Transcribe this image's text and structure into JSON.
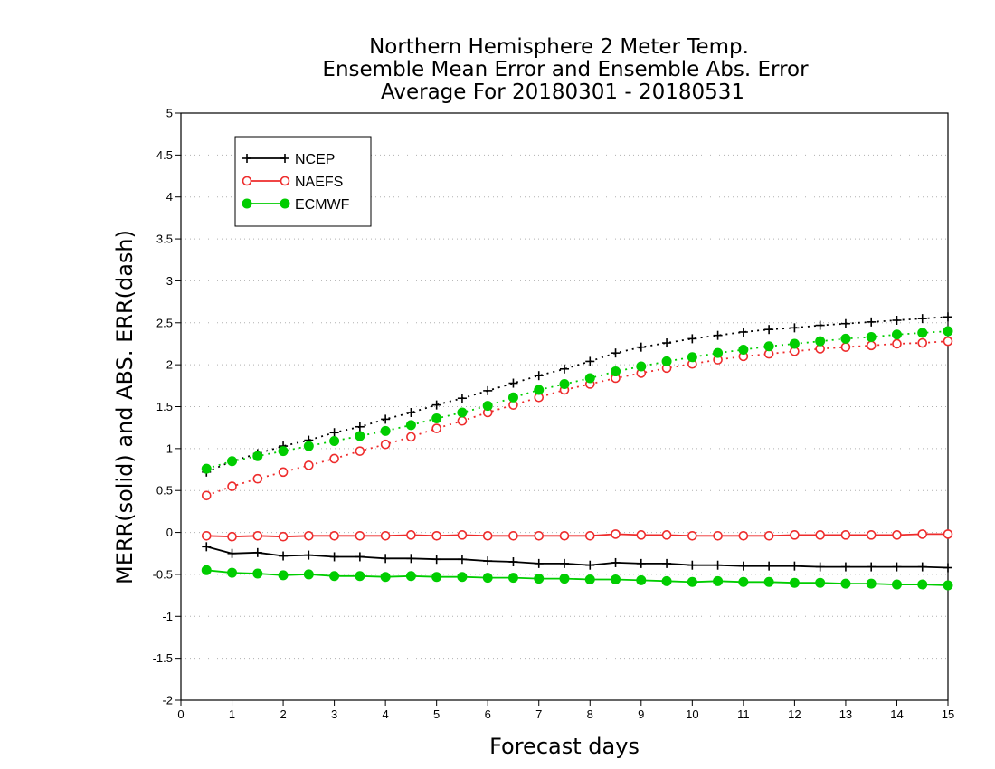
{
  "chart_data": {
    "type": "line",
    "title_lines": [
      "Northern Hemisphere 2 Meter Temp.",
      "Ensemble Mean Error and Ensemble Abs. Error",
      "Average For 20180301 - 20180531"
    ],
    "xlabel": "Forecast days",
    "ylabel": "MERR(solid) and ABS. ERR(dash)",
    "xlim": [
      0,
      15
    ],
    "ylim": [
      -2,
      5
    ],
    "xticks": [
      "0",
      "1",
      "2",
      "3",
      "4",
      "5",
      "6",
      "7",
      "8",
      "9",
      "10",
      "11",
      "12",
      "13",
      "14",
      "15"
    ],
    "yticks": [
      "-2",
      "-1.5",
      "-1",
      "-0.5",
      "0",
      "0.5",
      "1",
      "1.5",
      "2",
      "2.5",
      "3",
      "3.5",
      "4",
      "4.5",
      "5"
    ],
    "grid": true,
    "legend_position": "top-left",
    "x": [
      0.5,
      1,
      1.5,
      2,
      2.5,
      3,
      3.5,
      4,
      4.5,
      5,
      5.5,
      6,
      6.5,
      7,
      7.5,
      8,
      8.5,
      9,
      9.5,
      10,
      10.5,
      11,
      11.5,
      12,
      12.5,
      13,
      13.5,
      14,
      14.5,
      15
    ],
    "series": [
      {
        "name": "NCEP",
        "color": "#000000",
        "marker": "plus",
        "mean_error": [
          -0.17,
          -0.25,
          -0.24,
          -0.28,
          -0.27,
          -0.29,
          -0.29,
          -0.31,
          -0.31,
          -0.32,
          -0.32,
          -0.34,
          -0.35,
          -0.37,
          -0.37,
          -0.39,
          -0.36,
          -0.37,
          -0.37,
          -0.39,
          -0.39,
          -0.4,
          -0.4,
          -0.4,
          -0.41,
          -0.41,
          -0.41,
          -0.41,
          -0.41,
          -0.42
        ],
        "abs_error": [
          0.72,
          0.85,
          0.94,
          1.03,
          1.1,
          1.19,
          1.26,
          1.35,
          1.43,
          1.52,
          1.6,
          1.69,
          1.78,
          1.87,
          1.95,
          2.04,
          2.14,
          2.21,
          2.26,
          2.31,
          2.35,
          2.39,
          2.42,
          2.44,
          2.47,
          2.49,
          2.51,
          2.53,
          2.55,
          2.57
        ]
      },
      {
        "name": "NAEFS",
        "color": "#ee2c2c",
        "marker": "open-circle",
        "mean_error": [
          -0.04,
          -0.05,
          -0.04,
          -0.05,
          -0.04,
          -0.04,
          -0.04,
          -0.04,
          -0.03,
          -0.04,
          -0.03,
          -0.04,
          -0.04,
          -0.04,
          -0.04,
          -0.04,
          -0.02,
          -0.03,
          -0.03,
          -0.04,
          -0.04,
          -0.04,
          -0.04,
          -0.03,
          -0.03,
          -0.03,
          -0.03,
          -0.03,
          -0.02,
          -0.02
        ],
        "abs_error": [
          0.44,
          0.55,
          0.64,
          0.72,
          0.8,
          0.88,
          0.97,
          1.05,
          1.14,
          1.24,
          1.33,
          1.43,
          1.52,
          1.61,
          1.7,
          1.77,
          1.84,
          1.9,
          1.96,
          2.01,
          2.06,
          2.1,
          2.13,
          2.16,
          2.19,
          2.21,
          2.23,
          2.25,
          2.26,
          2.28
        ]
      },
      {
        "name": "ECMWF",
        "color": "#00cd00",
        "marker": "filled-circle",
        "mean_error": [
          -0.45,
          -0.48,
          -0.49,
          -0.51,
          -0.5,
          -0.52,
          -0.52,
          -0.53,
          -0.52,
          -0.53,
          -0.53,
          -0.54,
          -0.54,
          -0.55,
          -0.55,
          -0.56,
          -0.56,
          -0.57,
          -0.58,
          -0.59,
          -0.58,
          -0.59,
          -0.59,
          -0.6,
          -0.6,
          -0.61,
          -0.61,
          -0.62,
          -0.62,
          -0.63
        ],
        "abs_error": [
          0.76,
          0.85,
          0.91,
          0.97,
          1.03,
          1.09,
          1.15,
          1.21,
          1.28,
          1.36,
          1.43,
          1.51,
          1.61,
          1.7,
          1.77,
          1.84,
          1.92,
          1.98,
          2.04,
          2.09,
          2.14,
          2.18,
          2.22,
          2.25,
          2.28,
          2.31,
          2.33,
          2.36,
          2.38,
          2.4
        ]
      }
    ]
  }
}
